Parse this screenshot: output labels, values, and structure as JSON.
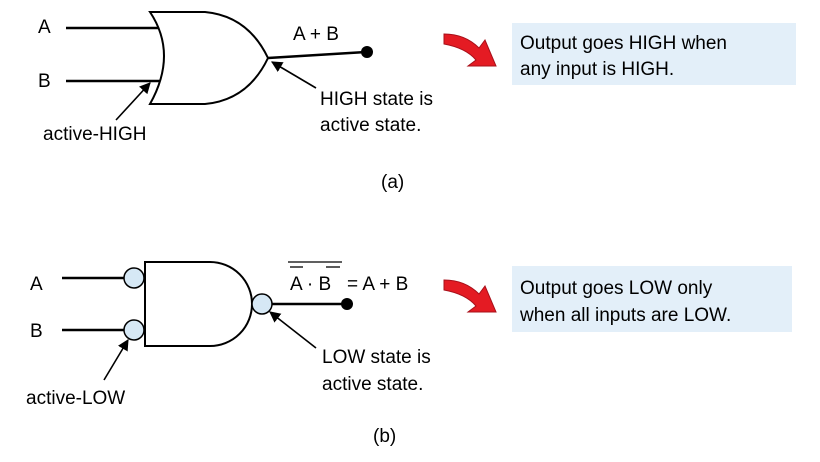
{
  "panel_a": {
    "input_1": "A",
    "input_2": "B",
    "output_expr": "A + B",
    "input_note": "active-HIGH",
    "output_note_line1": "HIGH state is",
    "output_note_line2": "active state.",
    "callout_line1": "Output goes HIGH when",
    "callout_line2": "any input is HIGH.",
    "caption": "(a)"
  },
  "panel_b": {
    "input_1": "A",
    "input_2": "B",
    "output_expr_left": "A · B",
    "output_expr_right": "= A + B",
    "input_note": "active-LOW",
    "output_note_line1": "LOW state is",
    "output_note_line2": "active state.",
    "callout_line1": "Output goes LOW only",
    "callout_line2": "when all inputs are LOW.",
    "caption": "(b)"
  },
  "colors": {
    "callout_bg": "#e3eff9",
    "arrow": "#e41b23",
    "bubble_fill": "#d6e8f5",
    "line": "#000000"
  }
}
